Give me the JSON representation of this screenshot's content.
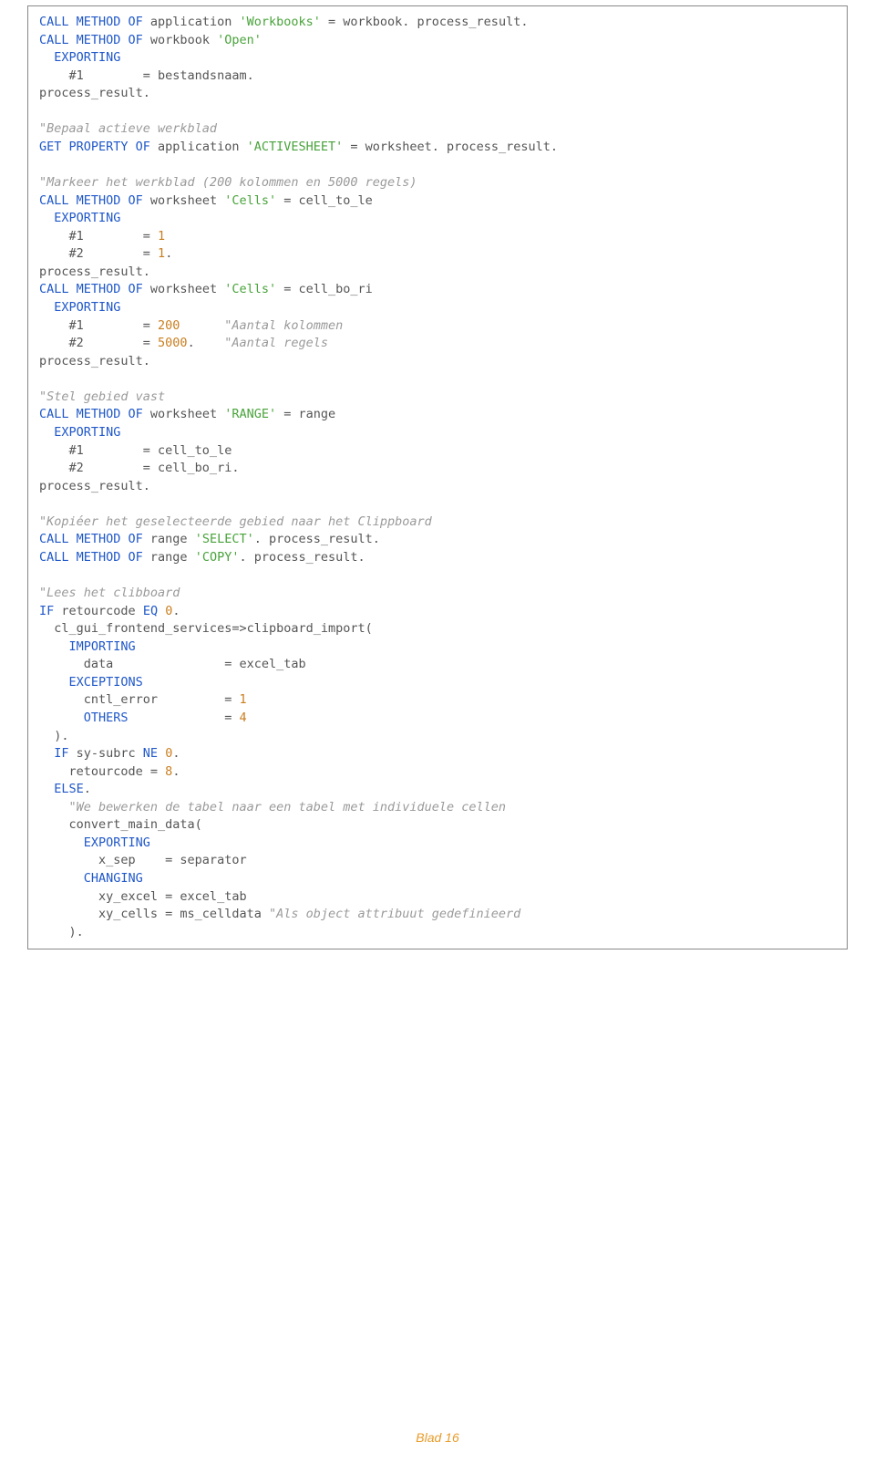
{
  "colors": {
    "keyword": "#2058c9",
    "string": "#49a33b",
    "comment": "#9a9a9a",
    "number": "#c97e1f",
    "text": "#555555",
    "border": "#888888",
    "footer": "#e89b2a",
    "background": "#ffffff"
  },
  "typography": {
    "font_family": "Verdana, monospace",
    "font_size_pt": 10,
    "line_height": 1.45
  },
  "code": {
    "lines": [
      [
        [
          "kw",
          "CALL METHOD OF"
        ],
        [
          "txt",
          " application "
        ],
        [
          "str",
          "'Workbooks'"
        ],
        [
          "txt",
          " = workbook. process_result."
        ]
      ],
      [
        [
          "kw",
          "CALL METHOD OF"
        ],
        [
          "txt",
          " workbook "
        ],
        [
          "str",
          "'Open'"
        ]
      ],
      [
        [
          "kw",
          "  EXPORTING"
        ]
      ],
      [
        [
          "txt",
          "    #1        = bestandsnaam."
        ]
      ],
      [
        [
          "txt",
          "process_result."
        ]
      ],
      [
        [
          "txt",
          ""
        ]
      ],
      [
        [
          "cmt",
          "\"Bepaal actieve werkblad"
        ]
      ],
      [
        [
          "kw",
          "GET PROPERTY OF"
        ],
        [
          "txt",
          " application "
        ],
        [
          "str",
          "'ACTIVESHEET'"
        ],
        [
          "txt",
          " = worksheet. process_result."
        ]
      ],
      [
        [
          "txt",
          ""
        ]
      ],
      [
        [
          "cmt",
          "\"Markeer het werkblad (200 kolommen en 5000 regels)"
        ]
      ],
      [
        [
          "kw",
          "CALL METHOD OF"
        ],
        [
          "txt",
          " worksheet "
        ],
        [
          "str",
          "'Cells'"
        ],
        [
          "txt",
          " = cell_to_le"
        ]
      ],
      [
        [
          "kw",
          "  EXPORTING"
        ]
      ],
      [
        [
          "txt",
          "    #1        = "
        ],
        [
          "num",
          "1"
        ]
      ],
      [
        [
          "txt",
          "    #2        = "
        ],
        [
          "num",
          "1"
        ],
        [
          "txt",
          "."
        ]
      ],
      [
        [
          "txt",
          "process_result."
        ]
      ],
      [
        [
          "kw",
          "CALL METHOD OF"
        ],
        [
          "txt",
          " worksheet "
        ],
        [
          "str",
          "'Cells'"
        ],
        [
          "txt",
          " = cell_bo_ri"
        ]
      ],
      [
        [
          "kw",
          "  EXPORTING"
        ]
      ],
      [
        [
          "txt",
          "    #1        = "
        ],
        [
          "num",
          "200"
        ],
        [
          "txt",
          "      "
        ],
        [
          "cmt",
          "\"Aantal kolommen"
        ]
      ],
      [
        [
          "txt",
          "    #2        = "
        ],
        [
          "num",
          "5000"
        ],
        [
          "txt",
          ".    "
        ],
        [
          "cmt",
          "\"Aantal regels"
        ]
      ],
      [
        [
          "txt",
          "process_result."
        ]
      ],
      [
        [
          "txt",
          ""
        ]
      ],
      [
        [
          "cmt",
          "\"Stel gebied vast"
        ]
      ],
      [
        [
          "kw",
          "CALL METHOD OF"
        ],
        [
          "txt",
          " worksheet "
        ],
        [
          "str",
          "'RANGE'"
        ],
        [
          "txt",
          " = range"
        ]
      ],
      [
        [
          "kw",
          "  EXPORTING"
        ]
      ],
      [
        [
          "txt",
          "    #1        = cell_to_le"
        ]
      ],
      [
        [
          "txt",
          "    #2        = cell_bo_ri."
        ]
      ],
      [
        [
          "txt",
          "process_result."
        ]
      ],
      [
        [
          "txt",
          ""
        ]
      ],
      [
        [
          "cmt",
          "\"Kopiéer het geselecteerde gebied naar het Clippboard"
        ]
      ],
      [
        [
          "kw",
          "CALL METHOD OF"
        ],
        [
          "txt",
          " range "
        ],
        [
          "str",
          "'SELECT'"
        ],
        [
          "txt",
          ". process_result."
        ]
      ],
      [
        [
          "kw",
          "CALL METHOD OF"
        ],
        [
          "txt",
          " range "
        ],
        [
          "str",
          "'COPY'"
        ],
        [
          "txt",
          ". process_result."
        ]
      ],
      [
        [
          "txt",
          ""
        ]
      ],
      [
        [
          "cmt",
          "\"Lees het clibboard"
        ]
      ],
      [
        [
          "kw",
          "IF"
        ],
        [
          "txt",
          " retourcode "
        ],
        [
          "kw",
          "EQ "
        ],
        [
          "num",
          "0"
        ],
        [
          "txt",
          "."
        ]
      ],
      [
        [
          "txt",
          "  cl_gui_frontend_services=>clipboard_import("
        ]
      ],
      [
        [
          "kw",
          "    IMPORTING"
        ]
      ],
      [
        [
          "txt",
          "      data               = excel_tab"
        ]
      ],
      [
        [
          "kw",
          "    EXCEPTIONS"
        ]
      ],
      [
        [
          "txt",
          "      cntl_error         = "
        ],
        [
          "num",
          "1"
        ]
      ],
      [
        [
          "kw",
          "      OTHERS"
        ],
        [
          "txt",
          "             = "
        ],
        [
          "num",
          "4"
        ]
      ],
      [
        [
          "txt",
          "  )."
        ]
      ],
      [
        [
          "kw",
          "  IF"
        ],
        [
          "txt",
          " sy-subrc "
        ],
        [
          "kw",
          "NE "
        ],
        [
          "num",
          "0"
        ],
        [
          "txt",
          "."
        ]
      ],
      [
        [
          "txt",
          "    retourcode = "
        ],
        [
          "num",
          "8"
        ],
        [
          "txt",
          "."
        ]
      ],
      [
        [
          "kw",
          "  ELSE"
        ],
        [
          "txt",
          "."
        ]
      ],
      [
        [
          "cmt",
          "    \"We bewerken de tabel naar een tabel met individuele cellen"
        ]
      ],
      [
        [
          "txt",
          "    convert_main_data("
        ]
      ],
      [
        [
          "kw",
          "      EXPORTING"
        ]
      ],
      [
        [
          "txt",
          "        x_sep    = separator"
        ]
      ],
      [
        [
          "kw",
          "      CHANGING"
        ]
      ],
      [
        [
          "txt",
          "        xy_excel = excel_tab"
        ]
      ],
      [
        [
          "txt",
          "        xy_cells = ms_celldata "
        ],
        [
          "cmt",
          "\"Als object attribuut gedefinieerd"
        ]
      ],
      [
        [
          "txt",
          "    )."
        ]
      ]
    ]
  },
  "footer": "Blad 16"
}
